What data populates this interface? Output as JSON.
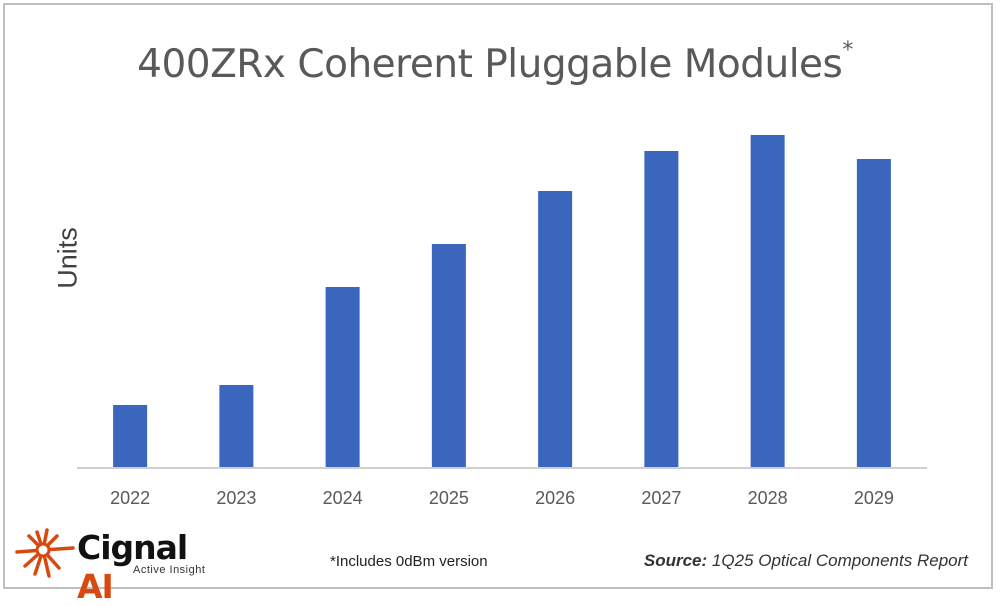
{
  "chart_data": {
    "type": "bar",
    "title": "400ZRx Coherent Pluggable Modules",
    "title_marker": "*",
    "xlabel": "",
    "ylabel": "Units",
    "categories": [
      "2022",
      "2023",
      "2024",
      "2025",
      "2026",
      "2027",
      "2028",
      "2029"
    ],
    "values": [
      62,
      82,
      180,
      223,
      276,
      316,
      332,
      308
    ],
    "value_note": "relative bar heights; no y-axis scale printed",
    "ylim": [
      0,
      345
    ],
    "grid": false,
    "legend": "none",
    "bar_color": "#3b66bd",
    "axis_color": "#d0d0d0"
  },
  "footnote": "*Includes 0dBm version",
  "source": {
    "label": "Source:",
    "text": "1Q25 Optical Components Report"
  },
  "logo": {
    "name": "Cignal",
    "suffix": "AI",
    "tagline": "Active Insight",
    "accent": "#d9480f"
  }
}
